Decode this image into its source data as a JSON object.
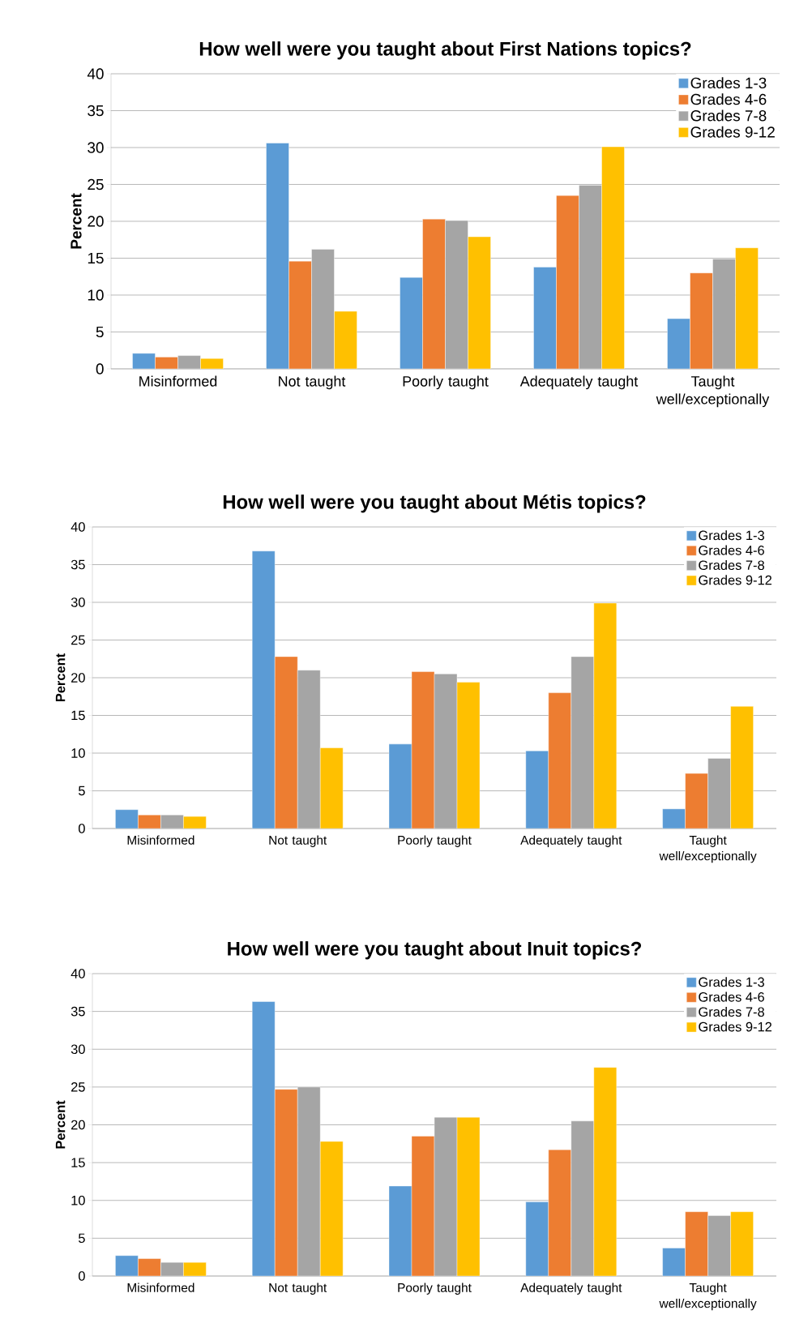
{
  "chart_data": [
    {
      "type": "bar",
      "title": "How well were you taught about First Nations topics?",
      "ylabel": "Percent",
      "categories": [
        "Misinformed",
        "Not taught",
        "Poorly taught",
        "Adequately taught",
        "Taught well/exceptionally"
      ],
      "ylim": [
        0,
        40
      ],
      "yticks": [
        0,
        5,
        10,
        15,
        20,
        25,
        30,
        35,
        40
      ],
      "grid": "y",
      "legend": "top right",
      "series": [
        {
          "name": "Grades 1-3",
          "color": "#5b9bd5",
          "values": [
            2.1,
            30.6,
            12.4,
            13.8,
            6.8
          ]
        },
        {
          "name": "Grades 4-6",
          "color": "#ed7d31",
          "values": [
            1.6,
            14.6,
            20.3,
            23.5,
            13.0
          ]
        },
        {
          "name": "Grades 7-8",
          "color": "#a5a5a5",
          "values": [
            1.8,
            16.2,
            20.1,
            24.9,
            14.9
          ]
        },
        {
          "name": "Grades 9-12",
          "color": "#ffc000",
          "values": [
            1.4,
            7.8,
            17.9,
            30.1,
            16.4
          ]
        }
      ]
    },
    {
      "type": "bar",
      "title": "How well were you taught about Métis topics?",
      "ylabel": "Percent",
      "categories": [
        "Misinformed",
        "Not taught",
        "Poorly taught",
        "Adequately taught",
        "Taught well/exceptionally"
      ],
      "ylim": [
        0,
        40
      ],
      "yticks": [
        0,
        5,
        10,
        15,
        20,
        25,
        30,
        35,
        40
      ],
      "grid": "y",
      "legend": "top right",
      "series": [
        {
          "name": "Grades 1-3",
          "color": "#5b9bd5",
          "values": [
            2.5,
            36.8,
            11.2,
            10.3,
            2.6
          ]
        },
        {
          "name": "Grades 4-6",
          "color": "#ed7d31",
          "values": [
            1.8,
            22.8,
            20.8,
            18.0,
            7.3
          ]
        },
        {
          "name": "Grades 7-8",
          "color": "#a5a5a5",
          "values": [
            1.8,
            21.0,
            20.5,
            22.8,
            9.3
          ]
        },
        {
          "name": "Grades 9-12",
          "color": "#ffc000",
          "values": [
            1.6,
            10.7,
            19.4,
            29.9,
            16.2
          ]
        }
      ]
    },
    {
      "type": "bar",
      "title": "How well were you taught about Inuit topics?",
      "ylabel": "Percent",
      "categories": [
        "Misinformed",
        "Not taught",
        "Poorly taught",
        "Adequately taught",
        "Taught well/exceptionally"
      ],
      "ylim": [
        0,
        40
      ],
      "yticks": [
        0,
        5,
        10,
        15,
        20,
        25,
        30,
        35,
        40
      ],
      "grid": "y",
      "legend": "top right",
      "series": [
        {
          "name": "Grades 1-3",
          "color": "#5b9bd5",
          "values": [
            2.7,
            36.3,
            11.9,
            9.8,
            3.7
          ]
        },
        {
          "name": "Grades 4-6",
          "color": "#ed7d31",
          "values": [
            2.3,
            24.7,
            18.5,
            16.7,
            8.5
          ]
        },
        {
          "name": "Grades 7-8",
          "color": "#a5a5a5",
          "values": [
            1.8,
            25.0,
            21.0,
            20.5,
            8.0
          ]
        },
        {
          "name": "Grades 9-12",
          "color": "#ffc000",
          "values": [
            1.8,
            17.8,
            21.0,
            27.6,
            8.5
          ]
        }
      ]
    }
  ]
}
